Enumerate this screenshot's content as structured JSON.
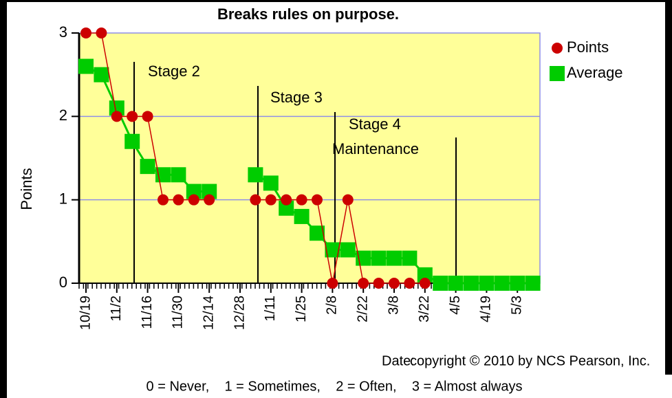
{
  "chart_data": {
    "type": "line",
    "title": "Breaks rules on purpose.",
    "y_label": "Points",
    "x_label": "Date:",
    "copyright": "copyright © 2010 by NCS Pearson, Inc.",
    "footnote": "0 = Never,    1 = Sometimes,    2 = Often,    3 = Almost always",
    "annotations": [
      "Stage 2",
      "Stage 3",
      "Stage 4",
      "Maintenance"
    ],
    "categories": [
      "10/19",
      null,
      "11/2",
      null,
      "11/16",
      null,
      "11/30",
      null,
      "12/14",
      null,
      "12/28",
      null,
      "1/11",
      null,
      "1/25",
      null,
      "2/8",
      null,
      "2/22",
      null,
      "3/8",
      null,
      "3/22",
      null,
      "4/5",
      null,
      "4/19",
      null,
      "5/3",
      null
    ],
    "series": [
      {
        "name": "Points",
        "color": "#cc0000",
        "marker": "circle",
        "values": [
          3,
          3,
          2,
          2,
          2,
          1,
          1,
          1,
          1,
          null,
          null,
          1,
          1,
          1,
          1,
          1,
          0,
          1,
          0,
          0,
          0,
          0,
          0,
          null,
          null,
          null,
          null,
          null,
          null,
          null
        ]
      },
      {
        "name": "Average",
        "color": "#00cc00",
        "marker": "square",
        "values": [
          2.6,
          2.5,
          2.1,
          1.7,
          1.4,
          1.3,
          1.3,
          1.1,
          1.1,
          null,
          null,
          1.3,
          1.2,
          0.9,
          0.8,
          0.6,
          0.4,
          0.4,
          0.3,
          0.3,
          0.3,
          0.3,
          0.1,
          0,
          0,
          0,
          0,
          0,
          0,
          0
        ]
      }
    ],
    "ylim": [
      0,
      3
    ],
    "yticks": [
      0,
      1,
      2,
      3
    ],
    "grid": true,
    "legend": "right"
  }
}
